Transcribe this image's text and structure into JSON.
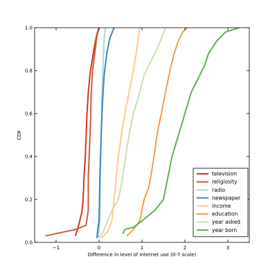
{
  "chart_data": {
    "type": "line",
    "title": "",
    "xlabel": "Difference in level of Internet use (0-7 scale)",
    "ylabel": "CDF",
    "xlim": [
      -1.5,
      3.5
    ],
    "ylim": [
      0.0,
      1.0
    ],
    "xticks": [
      -1,
      0,
      1,
      2,
      3
    ],
    "xtick_labels": [
      "−1",
      "0",
      "1",
      "2",
      "3"
    ],
    "yticks": [
      0.0,
      0.2,
      0.4,
      0.6,
      0.8,
      1.0
    ],
    "ytick_labels": [
      "0.0",
      "0.2",
      "0.4",
      "0.6",
      "0.8",
      "1.0"
    ],
    "grid": false,
    "legend_position": "lower-right",
    "series": [
      {
        "name": "television",
        "color": "#d7301f",
        "points": [
          [
            -0.55,
            0.03
          ],
          [
            -0.5,
            0.06
          ],
          [
            -0.45,
            0.1
          ],
          [
            -0.4,
            0.14
          ],
          [
            -0.37,
            0.2
          ],
          [
            -0.35,
            0.3
          ],
          [
            -0.32,
            0.4
          ],
          [
            -0.3,
            0.5
          ],
          [
            -0.28,
            0.6
          ],
          [
            -0.25,
            0.7
          ],
          [
            -0.2,
            0.8
          ],
          [
            -0.15,
            0.86
          ],
          [
            -0.1,
            0.92
          ],
          [
            -0.05,
            0.97
          ],
          [
            0.0,
            1.0
          ]
        ]
      },
      {
        "name": "religiosity",
        "color": "#cc5a3a",
        "points": [
          [
            -1.25,
            0.03
          ],
          [
            -0.55,
            0.06
          ],
          [
            -0.3,
            0.08
          ],
          [
            -0.25,
            0.15
          ],
          [
            -0.25,
            0.3
          ],
          [
            -0.22,
            0.45
          ],
          [
            -0.2,
            0.55
          ],
          [
            -0.18,
            0.7
          ],
          [
            -0.15,
            0.8
          ],
          [
            -0.1,
            0.88
          ],
          [
            -0.05,
            0.96
          ],
          [
            0.0,
            1.0
          ]
        ]
      },
      {
        "name": "radio",
        "color": "#a8d8d4",
        "points": [
          [
            -0.02,
            0.02
          ],
          [
            0.0,
            0.05
          ],
          [
            0.02,
            0.1
          ],
          [
            0.03,
            0.3
          ],
          [
            0.05,
            0.5
          ],
          [
            0.07,
            0.7
          ],
          [
            0.1,
            0.85
          ],
          [
            0.12,
            0.95
          ],
          [
            0.15,
            1.0
          ]
        ]
      },
      {
        "name": "newspaper",
        "color": "#3d85c6",
        "points": [
          [
            -0.05,
            0.02
          ],
          [
            -0.03,
            0.06
          ],
          [
            0.0,
            0.1
          ],
          [
            0.02,
            0.3
          ],
          [
            0.05,
            0.5
          ],
          [
            0.08,
            0.65
          ],
          [
            0.12,
            0.78
          ],
          [
            0.18,
            0.88
          ],
          [
            0.25,
            0.95
          ],
          [
            0.35,
            1.0
          ]
        ]
      },
      {
        "name": "income",
        "color": "#fbc98c",
        "points": [
          [
            0.05,
            0.02
          ],
          [
            0.2,
            0.05
          ],
          [
            0.3,
            0.1
          ],
          [
            0.35,
            0.2
          ],
          [
            0.4,
            0.3
          ],
          [
            0.45,
            0.4
          ],
          [
            0.52,
            0.5
          ],
          [
            0.6,
            0.6
          ],
          [
            0.7,
            0.7
          ],
          [
            0.8,
            0.8
          ],
          [
            0.88,
            0.9
          ],
          [
            0.92,
            0.96
          ],
          [
            0.95,
            1.0
          ]
        ]
      },
      {
        "name": "education",
        "color": "#f49b45",
        "points": [
          [
            0.65,
            0.03
          ],
          [
            0.8,
            0.06
          ],
          [
            0.95,
            0.1
          ],
          [
            1.0,
            0.15
          ],
          [
            1.05,
            0.2
          ],
          [
            1.15,
            0.25
          ],
          [
            1.2,
            0.3
          ],
          [
            1.28,
            0.4
          ],
          [
            1.35,
            0.5
          ],
          [
            1.45,
            0.6
          ],
          [
            1.55,
            0.7
          ],
          [
            1.65,
            0.8
          ],
          [
            1.75,
            0.88
          ],
          [
            1.85,
            0.94
          ],
          [
            1.95,
            0.98
          ],
          [
            2.05,
            1.0
          ]
        ]
      },
      {
        "name": "year asked",
        "color": "#c2e4a8",
        "points": [
          [
            0.0,
            0.02
          ],
          [
            0.1,
            0.05
          ],
          [
            0.2,
            0.1
          ],
          [
            0.3,
            0.15
          ],
          [
            0.45,
            0.2
          ],
          [
            0.55,
            0.3
          ],
          [
            0.62,
            0.4
          ],
          [
            0.7,
            0.5
          ],
          [
            0.8,
            0.6
          ],
          [
            0.95,
            0.7
          ],
          [
            1.05,
            0.78
          ],
          [
            1.2,
            0.84
          ],
          [
            1.35,
            0.9
          ],
          [
            1.45,
            0.95
          ],
          [
            1.55,
            1.0
          ]
        ]
      },
      {
        "name": "year born",
        "color": "#5daf51",
        "points": [
          [
            0.55,
            0.04
          ],
          [
            0.6,
            0.06
          ],
          [
            0.8,
            0.07
          ],
          [
            1.0,
            0.1
          ],
          [
            1.3,
            0.15
          ],
          [
            1.5,
            0.2
          ],
          [
            1.6,
            0.3
          ],
          [
            1.7,
            0.4
          ],
          [
            1.85,
            0.5
          ],
          [
            2.0,
            0.6
          ],
          [
            2.15,
            0.7
          ],
          [
            2.3,
            0.76
          ],
          [
            2.45,
            0.82
          ],
          [
            2.55,
            0.88
          ],
          [
            2.75,
            0.94
          ],
          [
            2.95,
            0.98
          ],
          [
            3.25,
            1.0
          ]
        ]
      }
    ]
  }
}
